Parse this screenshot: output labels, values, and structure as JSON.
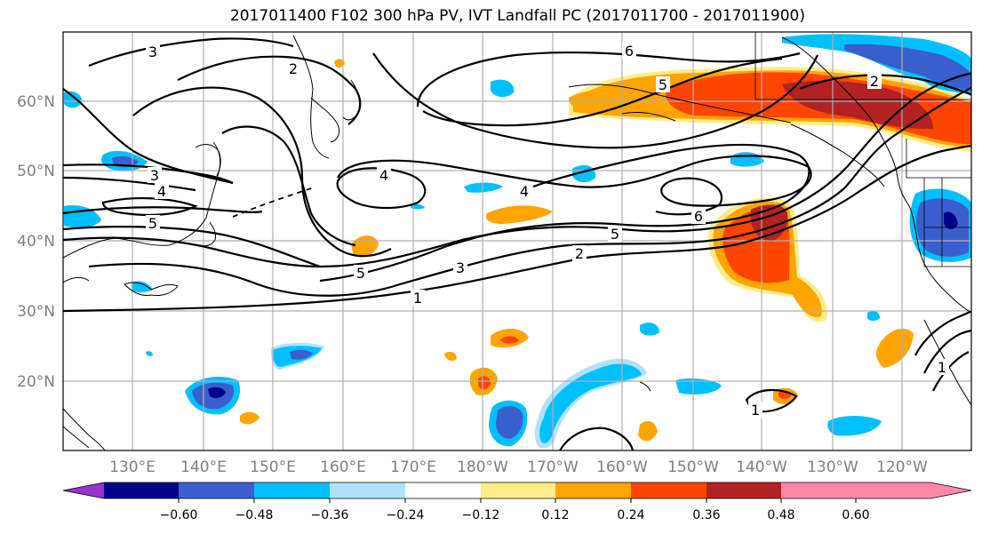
{
  "title": "2017011400 F102 300 hPa PV, IVT Landfall PC (2017011700 - 2017011900)",
  "map": {
    "lat_labels": [
      "60°N",
      "50°N",
      "40°N",
      "30°N",
      "20°N"
    ],
    "lon_labels": [
      "130°E",
      "140°E",
      "150°E",
      "160°E",
      "170°E",
      "180°W",
      "170°W",
      "160°W",
      "150°W",
      "140°W",
      "130°W",
      "120°W"
    ],
    "contour_labels": [
      "3",
      "2",
      "6",
      "5",
      "2",
      "3",
      "4",
      "5",
      "4",
      "4",
      "6",
      "5",
      "2",
      "5",
      "3",
      "1",
      "1",
      "1"
    ]
  },
  "colorbar": {
    "tick_labels": [
      "−0.60",
      "−0.48",
      "−0.36",
      "−0.24",
      "−0.12",
      "0.12",
      "0.24",
      "0.36",
      "0.48",
      "0.60"
    ],
    "colors": [
      "#9932cc",
      "#00008b",
      "#3a5fcd",
      "#00bfff",
      "#b0e2ff",
      "#ffffff",
      "#ffec8b",
      "#ffa500",
      "#ff4500",
      "#b22222",
      "#ff88aa"
    ]
  }
}
